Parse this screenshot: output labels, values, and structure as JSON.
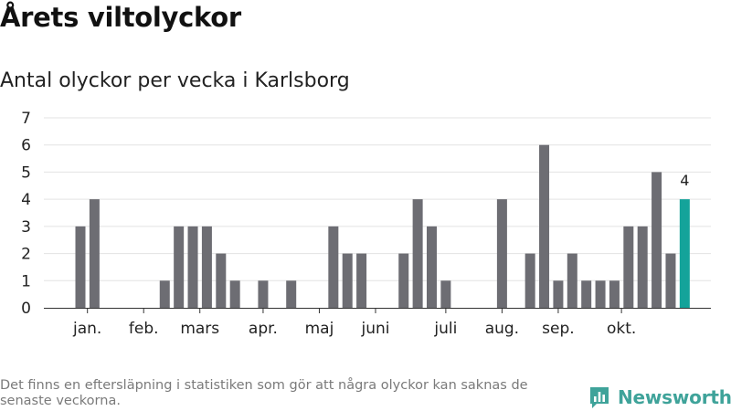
{
  "title": "Årets viltolyckor",
  "subtitle": "Antal olyckor per vecka i Karlsborg",
  "footnote": "Det finns en eftersläpning i statistiken som gör att några olyckor kan saknas de senaste veckorna.",
  "brand": {
    "name": "Newsworthy",
    "color": "#3fa39a",
    "icon": "bar-chart-logo-icon"
  },
  "colors": {
    "bar": "#6d6d73",
    "highlight": "#14a39a",
    "grid": "#e3e3e3",
    "axis": "#333333"
  },
  "chart_data": {
    "type": "bar",
    "title": "Antal olyckor per vecka i Karlsborg",
    "ylim": [
      0,
      7
    ],
    "yticks": [
      0,
      1,
      2,
      3,
      4,
      5,
      6,
      7
    ],
    "grid": true,
    "weeks": [
      1,
      2,
      3,
      4,
      5,
      6,
      7,
      8,
      9,
      10,
      11,
      12,
      13,
      14,
      15,
      16,
      17,
      18,
      19,
      20,
      21,
      22,
      23,
      24,
      25,
      26,
      27,
      28,
      29,
      30,
      31,
      32,
      33,
      34,
      35,
      36,
      37,
      38,
      39,
      40,
      41,
      42,
      43,
      44
    ],
    "values": [
      3,
      4,
      0,
      0,
      0,
      0,
      1,
      3,
      3,
      3,
      2,
      1,
      0,
      1,
      0,
      1,
      0,
      0,
      3,
      2,
      2,
      0,
      0,
      2,
      4,
      3,
      1,
      0,
      0,
      0,
      4,
      0,
      2,
      6,
      1,
      2,
      1,
      1,
      1,
      3,
      3,
      5,
      2,
      4
    ],
    "highlight_index": 43,
    "highlight_label": "4",
    "month_labels": [
      {
        "label": "jan.",
        "week": 1.5
      },
      {
        "label": "feb.",
        "week": 5.5
      },
      {
        "label": "mars",
        "week": 9.5
      },
      {
        "label": "apr.",
        "week": 14
      },
      {
        "label": "maj",
        "week": 18
      },
      {
        "label": "juni",
        "week": 22
      },
      {
        "label": "juli",
        "week": 27
      },
      {
        "label": "aug.",
        "week": 31
      },
      {
        "label": "sep.",
        "week": 35
      },
      {
        "label": "okt.",
        "week": 39.5
      }
    ]
  }
}
